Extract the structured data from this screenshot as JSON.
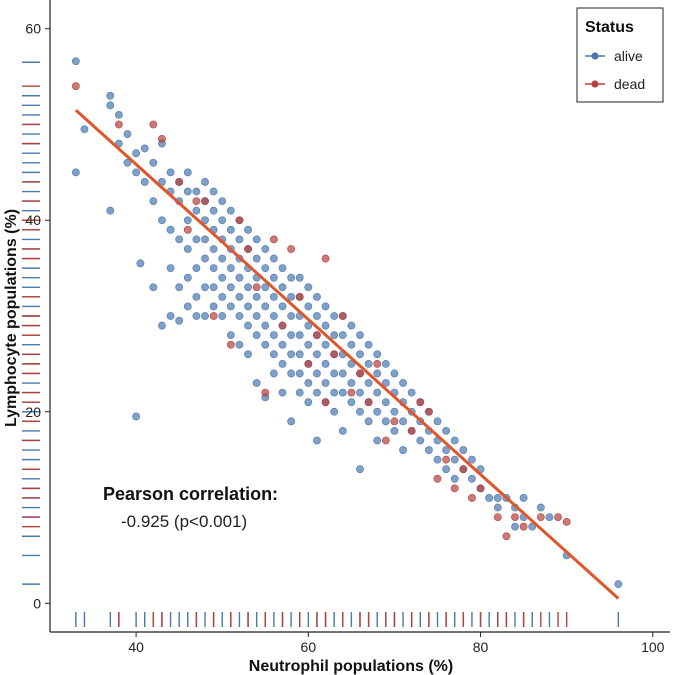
{
  "chart_data": {
    "type": "scatter",
    "title": "",
    "xlabel": "Neutrophil populations (%)",
    "ylabel": "Lymphocyte populations (%)",
    "xlim": [
      30,
      102
    ],
    "ylim": [
      -3,
      63
    ],
    "x_ticks": [
      40,
      60,
      80,
      100
    ],
    "y_ticks": [
      0,
      20,
      40,
      60
    ],
    "grid": false,
    "legend": {
      "title": "Status",
      "placement": "top-right",
      "entries": [
        {
          "label": "alive",
          "color": "#4a78b0"
        },
        {
          "label": "dead",
          "color": "#b5403c"
        }
      ]
    },
    "trend_line": {
      "x": [
        33,
        96
      ],
      "y": [
        51.5,
        0.5
      ],
      "color": "#e0552a"
    },
    "annotation": {
      "title": "Pearson correlation:",
      "text": "-0.925 (p<0.001)"
    },
    "series": [
      {
        "name": "alive",
        "color": "#4a78b0",
        "points": [
          [
            33,
            56.6
          ],
          [
            33,
            45
          ],
          [
            34,
            49.5
          ],
          [
            37,
            53
          ],
          [
            37,
            52
          ],
          [
            37,
            41
          ],
          [
            38,
            51
          ],
          [
            38,
            48
          ],
          [
            39,
            46
          ],
          [
            39,
            49
          ],
          [
            40,
            47
          ],
          [
            40,
            45
          ],
          [
            40,
            19.5
          ],
          [
            40.5,
            35.5
          ],
          [
            41,
            47.5
          ],
          [
            41,
            44
          ],
          [
            42,
            46
          ],
          [
            42,
            42
          ],
          [
            42,
            33
          ],
          [
            43,
            48
          ],
          [
            43,
            44
          ],
          [
            43,
            40
          ],
          [
            43,
            29
          ],
          [
            44,
            45
          ],
          [
            44,
            43
          ],
          [
            44,
            39
          ],
          [
            44,
            35
          ],
          [
            44,
            30
          ],
          [
            45,
            44
          ],
          [
            45,
            42
          ],
          [
            45,
            38
          ],
          [
            45,
            33
          ],
          [
            45,
            29.5
          ],
          [
            46,
            45
          ],
          [
            46,
            43
          ],
          [
            46,
            40
          ],
          [
            46,
            37
          ],
          [
            46,
            34
          ],
          [
            46,
            31
          ],
          [
            47,
            43
          ],
          [
            47,
            41
          ],
          [
            47,
            38
          ],
          [
            47,
            35
          ],
          [
            47,
            32
          ],
          [
            47,
            30
          ],
          [
            48,
            44
          ],
          [
            48,
            42
          ],
          [
            48,
            40
          ],
          [
            48,
            38
          ],
          [
            48,
            36
          ],
          [
            48,
            33
          ],
          [
            48,
            30
          ],
          [
            49,
            43
          ],
          [
            49,
            41
          ],
          [
            49,
            39
          ],
          [
            49,
            37
          ],
          [
            49,
            35
          ],
          [
            49,
            33
          ],
          [
            49,
            31
          ],
          [
            50,
            42
          ],
          [
            50,
            40
          ],
          [
            50,
            38
          ],
          [
            50,
            36
          ],
          [
            50,
            34
          ],
          [
            50,
            32
          ],
          [
            50,
            30
          ],
          [
            51,
            41
          ],
          [
            51,
            39
          ],
          [
            51,
            37
          ],
          [
            51,
            35
          ],
          [
            51,
            33
          ],
          [
            51,
            31
          ],
          [
            51,
            28
          ],
          [
            52,
            40
          ],
          [
            52,
            38
          ],
          [
            52,
            36
          ],
          [
            52,
            34
          ],
          [
            52,
            32
          ],
          [
            52,
            30
          ],
          [
            52,
            27
          ],
          [
            53,
            39
          ],
          [
            53,
            37
          ],
          [
            53,
            35
          ],
          [
            53,
            33
          ],
          [
            53,
            31
          ],
          [
            53,
            29
          ],
          [
            53,
            26
          ],
          [
            54,
            38
          ],
          [
            54,
            36
          ],
          [
            54,
            34
          ],
          [
            54,
            32
          ],
          [
            54,
            30
          ],
          [
            54,
            28
          ],
          [
            54,
            23
          ],
          [
            55,
            37
          ],
          [
            55,
            35
          ],
          [
            55,
            33
          ],
          [
            55,
            31
          ],
          [
            55,
            29
          ],
          [
            55,
            27
          ],
          [
            55,
            21.5
          ],
          [
            56,
            36
          ],
          [
            56,
            34
          ],
          [
            56,
            32
          ],
          [
            56,
            30
          ],
          [
            56,
            28
          ],
          [
            56,
            26
          ],
          [
            56,
            24
          ],
          [
            57,
            35
          ],
          [
            57,
            33
          ],
          [
            57,
            31
          ],
          [
            57,
            29
          ],
          [
            57,
            27
          ],
          [
            57,
            25
          ],
          [
            57,
            22
          ],
          [
            58,
            34
          ],
          [
            58,
            32
          ],
          [
            58,
            30
          ],
          [
            58,
            28
          ],
          [
            58,
            26
          ],
          [
            58,
            24
          ],
          [
            58,
            19
          ],
          [
            59,
            34
          ],
          [
            59,
            32
          ],
          [
            59,
            30
          ],
          [
            59,
            28
          ],
          [
            59,
            26
          ],
          [
            59,
            24
          ],
          [
            59,
            22
          ],
          [
            60,
            33
          ],
          [
            60,
            31
          ],
          [
            60,
            29
          ],
          [
            60,
            27
          ],
          [
            60,
            25
          ],
          [
            60,
            23
          ],
          [
            60,
            21
          ],
          [
            61,
            32
          ],
          [
            61,
            30
          ],
          [
            61,
            28
          ],
          [
            61,
            26
          ],
          [
            61,
            24
          ],
          [
            61,
            22
          ],
          [
            61,
            17
          ],
          [
            62,
            31
          ],
          [
            62,
            29
          ],
          [
            62,
            27
          ],
          [
            62,
            25
          ],
          [
            62,
            23
          ],
          [
            62,
            21
          ],
          [
            63,
            30
          ],
          [
            63,
            28
          ],
          [
            63,
            26
          ],
          [
            63,
            24
          ],
          [
            63,
            22
          ],
          [
            63,
            20
          ],
          [
            64,
            30
          ],
          [
            64,
            28
          ],
          [
            64,
            26
          ],
          [
            64,
            24
          ],
          [
            64,
            22
          ],
          [
            64,
            18
          ],
          [
            65,
            29
          ],
          [
            65,
            27
          ],
          [
            65,
            25
          ],
          [
            65,
            23
          ],
          [
            65,
            21
          ],
          [
            66,
            28
          ],
          [
            66,
            26
          ],
          [
            66,
            24
          ],
          [
            66,
            22
          ],
          [
            66,
            20
          ],
          [
            66,
            14
          ],
          [
            67,
            27
          ],
          [
            67,
            25
          ],
          [
            67,
            23
          ],
          [
            67,
            21
          ],
          [
            67,
            19
          ],
          [
            68,
            26
          ],
          [
            68,
            24
          ],
          [
            68,
            22
          ],
          [
            68,
            20
          ],
          [
            68,
            17
          ],
          [
            69,
            25
          ],
          [
            69,
            23
          ],
          [
            69,
            21
          ],
          [
            69,
            19
          ],
          [
            70,
            24
          ],
          [
            70,
            22
          ],
          [
            70,
            20
          ],
          [
            70,
            18
          ],
          [
            71,
            23
          ],
          [
            71,
            21
          ],
          [
            71,
            19
          ],
          [
            71,
            16
          ],
          [
            72,
            22
          ],
          [
            72,
            20
          ],
          [
            72,
            18
          ],
          [
            73,
            21
          ],
          [
            73,
            19
          ],
          [
            73,
            17
          ],
          [
            74,
            20
          ],
          [
            74,
            18
          ],
          [
            74,
            16
          ],
          [
            75,
            19
          ],
          [
            75,
            17
          ],
          [
            75,
            15
          ],
          [
            76,
            18
          ],
          [
            76,
            16
          ],
          [
            76,
            14
          ],
          [
            77,
            17
          ],
          [
            77,
            15
          ],
          [
            77,
            13
          ],
          [
            78,
            16
          ],
          [
            78,
            14
          ],
          [
            79,
            15
          ],
          [
            79,
            13
          ],
          [
            80,
            14
          ],
          [
            80,
            12
          ],
          [
            81,
            11
          ],
          [
            82,
            11
          ],
          [
            82,
            10
          ],
          [
            83,
            11
          ],
          [
            84,
            10
          ],
          [
            84,
            8
          ],
          [
            85,
            9
          ],
          [
            85,
            11
          ],
          [
            86,
            8
          ],
          [
            87,
            10
          ],
          [
            88,
            9
          ],
          [
            90,
            5
          ],
          [
            96,
            2
          ]
        ]
      },
      {
        "name": "dead",
        "color": "#b5403c",
        "points": [
          [
            33,
            54
          ],
          [
            38,
            50
          ],
          [
            42,
            50
          ],
          [
            43,
            48.5
          ],
          [
            45,
            44
          ],
          [
            46,
            39
          ],
          [
            47,
            42
          ],
          [
            48,
            42
          ],
          [
            49,
            30
          ],
          [
            51,
            27
          ],
          [
            52,
            40
          ],
          [
            53,
            37
          ],
          [
            54,
            33
          ],
          [
            55,
            22
          ],
          [
            56,
            38
          ],
          [
            57,
            29
          ],
          [
            58,
            37
          ],
          [
            59,
            32
          ],
          [
            60,
            25
          ],
          [
            61,
            28
          ],
          [
            62,
            36
          ],
          [
            62,
            21
          ],
          [
            63,
            26
          ],
          [
            64,
            30
          ],
          [
            65,
            22
          ],
          [
            66,
            24
          ],
          [
            67,
            21
          ],
          [
            68,
            25
          ],
          [
            69,
            17
          ],
          [
            70,
            19
          ],
          [
            72,
            18
          ],
          [
            73,
            21
          ],
          [
            74,
            20
          ],
          [
            75,
            13
          ],
          [
            76,
            15
          ],
          [
            77,
            12
          ],
          [
            78,
            14
          ],
          [
            79,
            11
          ],
          [
            80,
            12
          ],
          [
            82,
            9
          ],
          [
            83,
            7
          ],
          [
            84,
            9
          ],
          [
            85,
            8
          ],
          [
            87,
            9
          ],
          [
            89,
            9
          ],
          [
            90,
            8.5
          ]
        ]
      }
    ],
    "rug_x": {
      "alive": [
        33,
        34,
        37,
        38,
        40,
        41,
        42,
        43,
        44,
        45,
        46,
        47,
        48,
        49,
        50,
        51,
        52,
        53,
        54,
        55,
        56,
        57,
        58,
        59,
        60,
        61,
        62,
        63,
        64,
        65,
        66,
        67,
        68,
        69,
        70,
        71,
        72,
        73,
        74,
        75,
        76,
        77,
        78,
        79,
        80,
        81,
        82,
        83,
        84,
        85,
        86,
        88,
        96
      ],
      "dead": [
        38,
        42,
        43,
        47,
        49,
        51,
        53,
        55,
        57,
        59,
        61,
        62,
        64,
        66,
        67,
        69,
        70,
        72,
        74,
        76,
        78,
        80,
        82,
        83,
        85,
        87,
        89,
        90
      ]
    },
    "rug_y": {
      "alive": [
        2,
        5,
        7,
        9,
        10,
        11,
        12,
        13,
        14,
        15,
        16,
        17,
        18,
        19,
        20,
        21,
        22,
        23,
        24,
        25,
        26,
        27,
        28,
        29,
        30,
        31,
        32,
        33,
        34,
        35,
        36,
        37,
        38,
        39,
        40,
        41,
        42,
        43,
        44,
        45,
        46,
        47,
        48,
        49,
        50,
        51,
        52,
        53,
        56.5
      ],
      "dead": [
        8,
        9,
        11,
        12,
        14,
        17,
        19,
        21,
        22,
        24,
        25,
        26,
        28,
        29,
        30,
        32,
        36,
        37,
        39,
        40,
        42,
        44,
        48,
        50,
        54
      ]
    }
  }
}
